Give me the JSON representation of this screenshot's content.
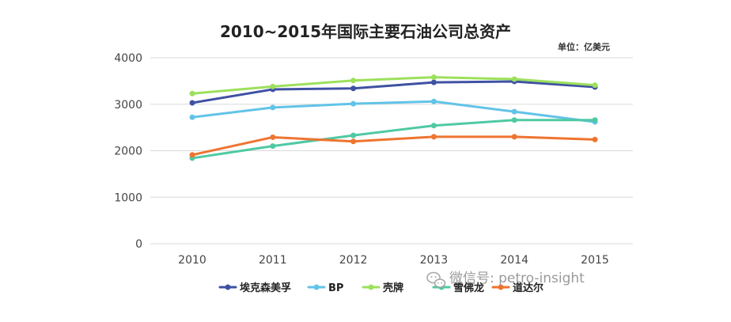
{
  "chart_data": {
    "type": "line",
    "title": "2010~2015年国际主要石油公司总资产",
    "unit_label": "单位：亿美元",
    "x": [
      "2010",
      "2011",
      "2012",
      "2013",
      "2014",
      "2015"
    ],
    "ylim": [
      0,
      4000
    ],
    "yticks": [
      "0",
      "1000",
      "2000",
      "3000",
      "4000"
    ],
    "grid": true,
    "legend_position": "bottom",
    "series": [
      {
        "name": "埃克森美孚",
        "color": "#3f51a3",
        "values": [
          3030,
          3320,
          3340,
          3470,
          3490,
          3370
        ]
      },
      {
        "name": "BP",
        "color": "#62c3e8",
        "values": [
          2720,
          2930,
          3010,
          3060,
          2840,
          2620
        ]
      },
      {
        "name": "壳牌",
        "color": "#9ce05c",
        "values": [
          3230,
          3380,
          3510,
          3580,
          3540,
          3410
        ]
      },
      {
        "name": "雪佛龙",
        "color": "#4fc9a3",
        "values": [
          1840,
          2100,
          2330,
          2540,
          2660,
          2660
        ]
      },
      {
        "name": "道达尔",
        "color": "#ee7430",
        "values": [
          1910,
          2290,
          2200,
          2300,
          2300,
          2240
        ]
      }
    ]
  },
  "watermark": {
    "text": "微信号: petro-insight",
    "icon": "wechat-logo-icon"
  }
}
